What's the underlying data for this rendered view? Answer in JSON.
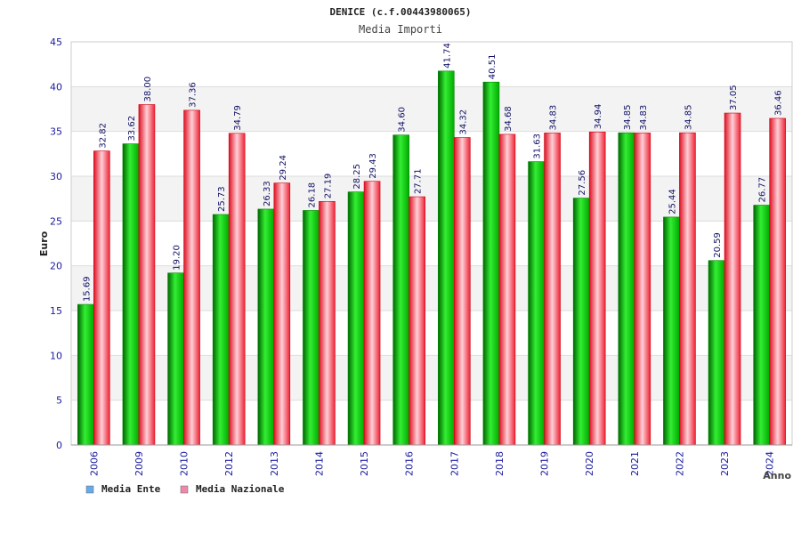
{
  "chart_data": {
    "type": "bar",
    "title": "DENICE (c.f.00443980065)",
    "subtitle": "Media Importi",
    "xlabel": "Anno",
    "ylabel": "Euro",
    "ylim": [
      0,
      45
    ],
    "ytick_step": 5,
    "yticks": [
      "0",
      "5",
      "10",
      "15",
      "20",
      "25",
      "30",
      "35",
      "40",
      "45"
    ],
    "grid": true,
    "legend_position": "bottom-left",
    "categories": [
      "2006",
      "2009",
      "2010",
      "2012",
      "2013",
      "2014",
      "2015",
      "2016",
      "2017",
      "2018",
      "2019",
      "2020",
      "2021",
      "2022",
      "2023",
      "2024"
    ],
    "series": [
      {
        "name": "Media Ente",
        "color": "#00aa00",
        "legend_color": "#66aaee",
        "values": [
          15.69,
          33.62,
          19.2,
          25.73,
          26.33,
          26.18,
          28.25,
          34.6,
          41.74,
          40.51,
          31.63,
          27.56,
          34.85,
          25.44,
          20.59,
          26.77
        ],
        "labels": [
          "15.69",
          "33.62",
          "19.20",
          "25.73",
          "26.33",
          "26.18",
          "28.25",
          "34.60",
          "41.74",
          "40.51",
          "31.63",
          "27.56",
          "34.85",
          "25.44",
          "20.59",
          "26.77"
        ]
      },
      {
        "name": "Media Nazionale",
        "color": "#ee2233",
        "legend_color": "#ee88aa",
        "values": [
          32.82,
          38.0,
          37.36,
          34.79,
          29.24,
          27.19,
          29.43,
          27.71,
          34.32,
          34.68,
          34.83,
          34.94,
          34.83,
          34.85,
          37.05,
          36.46
        ],
        "labels": [
          "32.82",
          "38.00",
          "37.36",
          "34.79",
          "29.24",
          "27.19",
          "29.43",
          "27.71",
          "34.32",
          "34.68",
          "34.83",
          "34.94",
          "34.83",
          "34.85",
          "37.05",
          "36.46"
        ]
      }
    ]
  }
}
